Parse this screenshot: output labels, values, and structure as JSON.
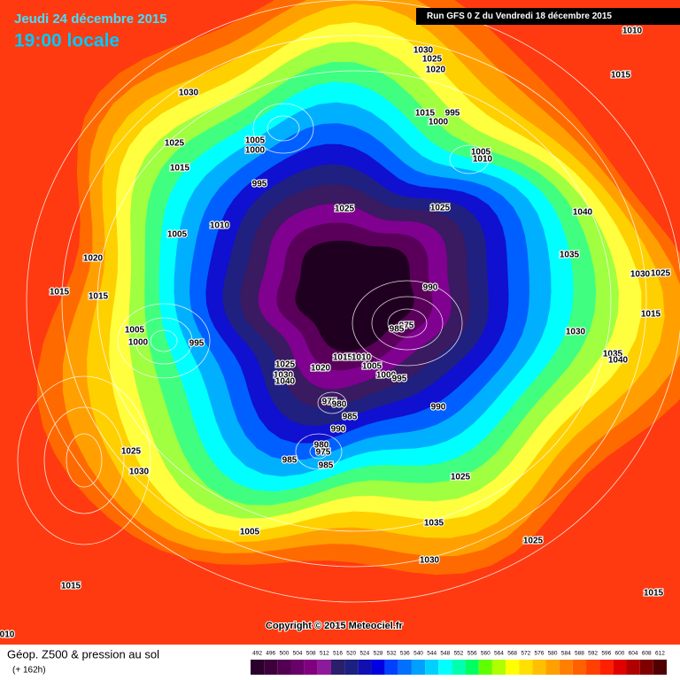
{
  "header": {
    "date": "Jeudi 24 décembre 2015",
    "time": "19:00 locale",
    "run": "Run GFS 0 Z du Vendredi 18 décembre 2015"
  },
  "copyright": "Copyright © 2015 Meteociel.fr",
  "footer": {
    "title": "Géop. Z500 & pression au sol",
    "lead": "(+ 162h)"
  },
  "pressure_labels": [
    "1030",
    "1025",
    "1020",
    "1010",
    "1030",
    "1015",
    "1015",
    "995",
    "1000",
    "1005",
    "1000",
    "1025",
    "1015",
    "1005",
    "1010",
    "995",
    "1040",
    "1025",
    "1025",
    "1010",
    "1005",
    "1020",
    "1035",
    "1015",
    "1015",
    "990",
    "1030",
    "1025",
    "1015",
    "975",
    "985",
    "1005",
    "1000",
    "995",
    "1030",
    "1035",
    "1040",
    "1015",
    "1010",
    "1025",
    "1020",
    "1005",
    "1000",
    "1030",
    "1040",
    "995",
    "975",
    "980",
    "990",
    "985",
    "990",
    "980",
    "975",
    "985",
    "985",
    "1025",
    "1030",
    "1025",
    "1035",
    "1005",
    "1025",
    "1030",
    "1015",
    "1015",
    "010"
  ],
  "scale": {
    "values": [
      492,
      496,
      500,
      504,
      508,
      512,
      516,
      520,
      524,
      528,
      532,
      536,
      540,
      544,
      548,
      552,
      556,
      560,
      564,
      568,
      572,
      576,
      580,
      584,
      588,
      592,
      596,
      600,
      604,
      608,
      612
    ],
    "colors": [
      "#2b002b",
      "#3d003d",
      "#520052",
      "#6a006a",
      "#800080",
      "#8c1a9a",
      "#2a1f6b",
      "#1c2080",
      "#1010b0",
      "#0000e0",
      "#0040ff",
      "#0070ff",
      "#00a0ff",
      "#00d0ff",
      "#00ffff",
      "#00ffb0",
      "#00ff60",
      "#60ff00",
      "#b0ff00",
      "#ffff00",
      "#ffe000",
      "#ffc000",
      "#ffa000",
      "#ff8000",
      "#ff6000",
      "#ff4000",
      "#ff2000",
      "#e00000",
      "#b00000",
      "#800000",
      "#500000"
    ]
  }
}
